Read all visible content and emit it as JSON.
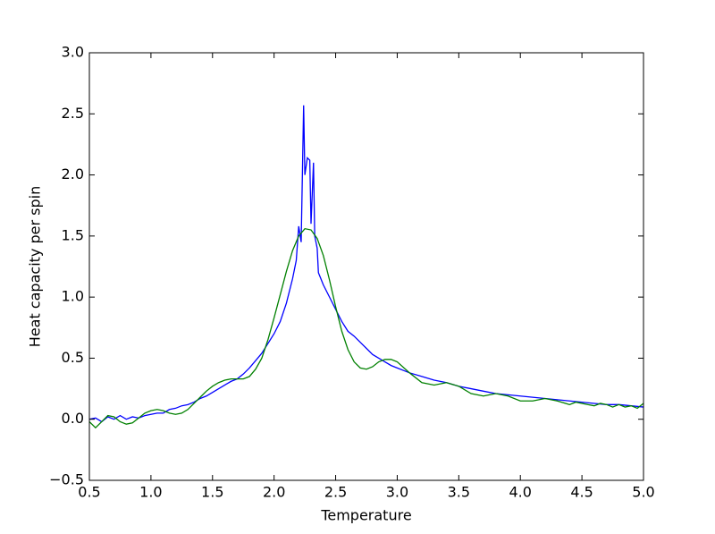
{
  "chart_data": {
    "type": "line",
    "xlabel": "Temperature",
    "ylabel": "Heat capacity per spin",
    "xlim": [
      0.5,
      5.0
    ],
    "ylim": [
      -0.5,
      3.0
    ],
    "xticks": [
      0.5,
      {
        "value": 1.0,
        "label": "1.0"
      },
      1.5,
      {
        "value": 2.0,
        "label": "2.0"
      },
      2.5,
      {
        "value": 3.0,
        "label": "3.0"
      },
      3.5,
      {
        "value": 4.0,
        "label": "4.0"
      },
      4.5,
      {
        "value": 5.0,
        "label": "5.0"
      }
    ],
    "yticks": [
      {
        "value": -0.5,
        "label": "−0.5"
      },
      {
        "value": 0.0,
        "label": "0.0"
      },
      0.5,
      {
        "value": 1.0,
        "label": "1.0"
      },
      1.5,
      {
        "value": 2.0,
        "label": "2.0"
      },
      2.5,
      {
        "value": 3.0,
        "label": "3.0"
      }
    ],
    "series": [
      {
        "color": "#0000ff",
        "x": [
          0.5,
          0.55,
          0.6,
          0.65,
          0.7,
          0.75,
          0.8,
          0.85,
          0.9,
          0.95,
          1.0,
          1.05,
          1.1,
          1.15,
          1.2,
          1.25,
          1.3,
          1.35,
          1.4,
          1.45,
          1.5,
          1.55,
          1.6,
          1.65,
          1.7,
          1.75,
          1.8,
          1.85,
          1.9,
          1.95,
          2.0,
          2.05,
          2.1,
          2.15,
          2.18,
          2.2,
          2.22,
          2.24,
          2.25,
          2.27,
          2.29,
          2.3,
          2.32,
          2.33,
          2.35,
          2.36,
          2.38,
          2.4,
          2.45,
          2.5,
          2.55,
          2.6,
          2.65,
          2.7,
          2.75,
          2.8,
          2.85,
          2.9,
          2.95,
          3.0,
          3.1,
          3.2,
          3.3,
          3.4,
          3.5,
          3.6,
          3.7,
          3.8,
          3.9,
          4.0,
          4.1,
          4.2,
          4.3,
          4.4,
          4.5,
          4.6,
          4.7,
          4.8,
          4.9,
          5.0
        ],
        "values": [
          0.0,
          0.01,
          -0.02,
          0.02,
          0.0,
          0.03,
          0.0,
          0.02,
          0.01,
          0.03,
          0.04,
          0.05,
          0.05,
          0.08,
          0.09,
          0.11,
          0.12,
          0.14,
          0.17,
          0.19,
          0.22,
          0.25,
          0.28,
          0.31,
          0.33,
          0.37,
          0.42,
          0.48,
          0.54,
          0.62,
          0.7,
          0.8,
          0.95,
          1.15,
          1.3,
          1.58,
          1.45,
          2.57,
          2.0,
          2.14,
          2.12,
          1.6,
          2.1,
          1.5,
          1.4,
          1.2,
          1.15,
          1.1,
          1.0,
          0.9,
          0.8,
          0.72,
          0.68,
          0.63,
          0.58,
          0.53,
          0.5,
          0.47,
          0.44,
          0.42,
          0.38,
          0.35,
          0.32,
          0.3,
          0.27,
          0.25,
          0.23,
          0.21,
          0.2,
          0.19,
          0.18,
          0.17,
          0.16,
          0.15,
          0.14,
          0.13,
          0.12,
          0.12,
          0.11,
          0.1
        ]
      },
      {
        "color": "#008000",
        "x": [
          0.5,
          0.55,
          0.6,
          0.65,
          0.7,
          0.75,
          0.8,
          0.85,
          0.9,
          0.95,
          1.0,
          1.05,
          1.1,
          1.15,
          1.2,
          1.25,
          1.3,
          1.35,
          1.4,
          1.45,
          1.5,
          1.55,
          1.6,
          1.65,
          1.7,
          1.75,
          1.8,
          1.85,
          1.9,
          1.95,
          2.0,
          2.05,
          2.1,
          2.15,
          2.2,
          2.25,
          2.3,
          2.35,
          2.4,
          2.45,
          2.5,
          2.55,
          2.6,
          2.65,
          2.7,
          2.75,
          2.8,
          2.85,
          2.9,
          2.95,
          3.0,
          3.1,
          3.2,
          3.3,
          3.4,
          3.5,
          3.6,
          3.7,
          3.8,
          3.9,
          4.0,
          4.1,
          4.2,
          4.3,
          4.4,
          4.45,
          4.55,
          4.6,
          4.65,
          4.7,
          4.75,
          4.8,
          4.85,
          4.9,
          4.95,
          5.0
        ],
        "values": [
          -0.02,
          -0.07,
          -0.02,
          0.03,
          0.02,
          -0.02,
          -0.04,
          -0.03,
          0.01,
          0.05,
          0.07,
          0.08,
          0.07,
          0.05,
          0.04,
          0.05,
          0.08,
          0.13,
          0.18,
          0.23,
          0.27,
          0.3,
          0.32,
          0.33,
          0.33,
          0.33,
          0.35,
          0.41,
          0.5,
          0.65,
          0.83,
          1.02,
          1.21,
          1.38,
          1.5,
          1.56,
          1.55,
          1.48,
          1.34,
          1.14,
          0.92,
          0.72,
          0.57,
          0.47,
          0.42,
          0.41,
          0.43,
          0.47,
          0.49,
          0.49,
          0.47,
          0.38,
          0.3,
          0.28,
          0.3,
          0.27,
          0.21,
          0.19,
          0.21,
          0.19,
          0.15,
          0.15,
          0.17,
          0.15,
          0.12,
          0.14,
          0.12,
          0.11,
          0.13,
          0.12,
          0.1,
          0.12,
          0.1,
          0.11,
          0.09,
          0.13
        ]
      }
    ]
  }
}
